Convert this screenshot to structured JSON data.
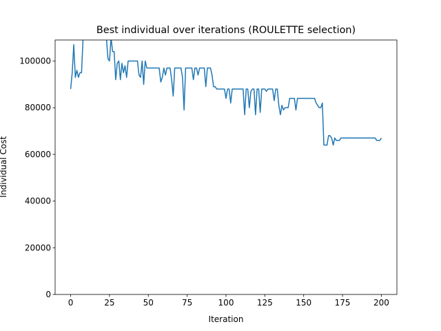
{
  "chart_data": {
    "type": "line",
    "title": "Best individual over iterations (ROULETTE selection)",
    "x_label": "Iteration",
    "y_label": "Individual Cost",
    "x": [
      0,
      1,
      2,
      3,
      4,
      5,
      6,
      7,
      8,
      9,
      10,
      11,
      12,
      13,
      14,
      15,
      16,
      17,
      18,
      19,
      20,
      21,
      22,
      23,
      24,
      25,
      26,
      27,
      28,
      29,
      30,
      31,
      32,
      33,
      34,
      35,
      36,
      37,
      38,
      39,
      40,
      41,
      42,
      43,
      44,
      45,
      46,
      47,
      48,
      49,
      50,
      51,
      52,
      53,
      54,
      55,
      56,
      57,
      58,
      59,
      60,
      61,
      62,
      63,
      64,
      65,
      66,
      67,
      68,
      69,
      70,
      71,
      72,
      73,
      74,
      75,
      76,
      77,
      78,
      79,
      80,
      81,
      82,
      83,
      84,
      85,
      86,
      87,
      88,
      89,
      90,
      91,
      92,
      93,
      94,
      95,
      96,
      97,
      98,
      99,
      100,
      101,
      102,
      103,
      104,
      105,
      106,
      107,
      108,
      109,
      110,
      111,
      112,
      113,
      114,
      115,
      116,
      117,
      118,
      119,
      120,
      121,
      122,
      123,
      124,
      125,
      126,
      127,
      128,
      129,
      130,
      131,
      132,
      133,
      134,
      135,
      136,
      137,
      138,
      139,
      140,
      141,
      142,
      143,
      144,
      145,
      146,
      147,
      148,
      149,
      150,
      151,
      152,
      153,
      154,
      155,
      156,
      157,
      158,
      159,
      160,
      161,
      162,
      163,
      164,
      165,
      166,
      167,
      168,
      169,
      170,
      171,
      172,
      173,
      174,
      175,
      176,
      177,
      178,
      179,
      180,
      181,
      182,
      183,
      184,
      185,
      186,
      187,
      188,
      189,
      190,
      191,
      192,
      193,
      194,
      195,
      196,
      197,
      198,
      199,
      200
    ],
    "series": [
      {
        "name": "best",
        "color": "#1f77b4",
        "values": [
          88000,
          95000,
          107000,
          93000,
          96000,
          93000,
          95000,
          95000,
          110000,
          115000,
          115000,
          115000,
          115000,
          115000,
          115000,
          115000,
          115000,
          115000,
          115000,
          115000,
          115000,
          115000,
          115000,
          110000,
          101000,
          100000,
          110000,
          104000,
          104000,
          92000,
          99000,
          100000,
          92000,
          99000,
          95000,
          98000,
          93000,
          100000,
          100000,
          100000,
          100000,
          100000,
          100000,
          100000,
          94000,
          93000,
          100000,
          90000,
          100000,
          97000,
          97000,
          97000,
          97000,
          97000,
          97000,
          97000,
          97000,
          97000,
          91000,
          93000,
          97000,
          94000,
          97000,
          97000,
          97000,
          92000,
          85000,
          97000,
          97000,
          97000,
          97000,
          97000,
          93000,
          79000,
          97000,
          97000,
          97000,
          97000,
          97000,
          92000,
          97000,
          97000,
          94000,
          97000,
          97000,
          97000,
          97000,
          89000,
          97000,
          97000,
          97000,
          94000,
          89000,
          89000,
          88000,
          88000,
          88000,
          88000,
          88000,
          88000,
          84000,
          88000,
          88000,
          82000,
          88000,
          88000,
          88000,
          88000,
          88000,
          88000,
          88000,
          88000,
          77000,
          88000,
          88000,
          80000,
          87000,
          88000,
          88000,
          77000,
          88000,
          88000,
          78000,
          88000,
          88000,
          88000,
          87000,
          88000,
          88000,
          88000,
          88000,
          83000,
          88000,
          88000,
          81000,
          77000,
          81000,
          79000,
          80000,
          80000,
          80000,
          84000,
          84000,
          84000,
          84000,
          79000,
          84000,
          84000,
          84000,
          84000,
          84000,
          84000,
          84000,
          84000,
          84000,
          84000,
          84000,
          84000,
          82000,
          81000,
          80000,
          80000,
          82000,
          64000,
          64000,
          64000,
          68000,
          68000,
          67000,
          64000,
          67000,
          66000,
          66000,
          66000,
          67000,
          67000,
          67000,
          67000,
          67000,
          67000,
          67000,
          67000,
          67000,
          67000,
          67000,
          67000,
          67000,
          67000,
          67000,
          67000,
          67000,
          67000,
          67000,
          67000,
          67000,
          67000,
          67000,
          66000,
          66000,
          66000,
          67000
        ]
      }
    ],
    "xlim": [
      -10,
      210
    ],
    "ylim": [
      0,
      109000
    ],
    "xticks": [
      0,
      25,
      50,
      75,
      100,
      125,
      150,
      175,
      200
    ],
    "yticks": [
      0,
      20000,
      40000,
      60000,
      80000,
      100000
    ]
  }
}
